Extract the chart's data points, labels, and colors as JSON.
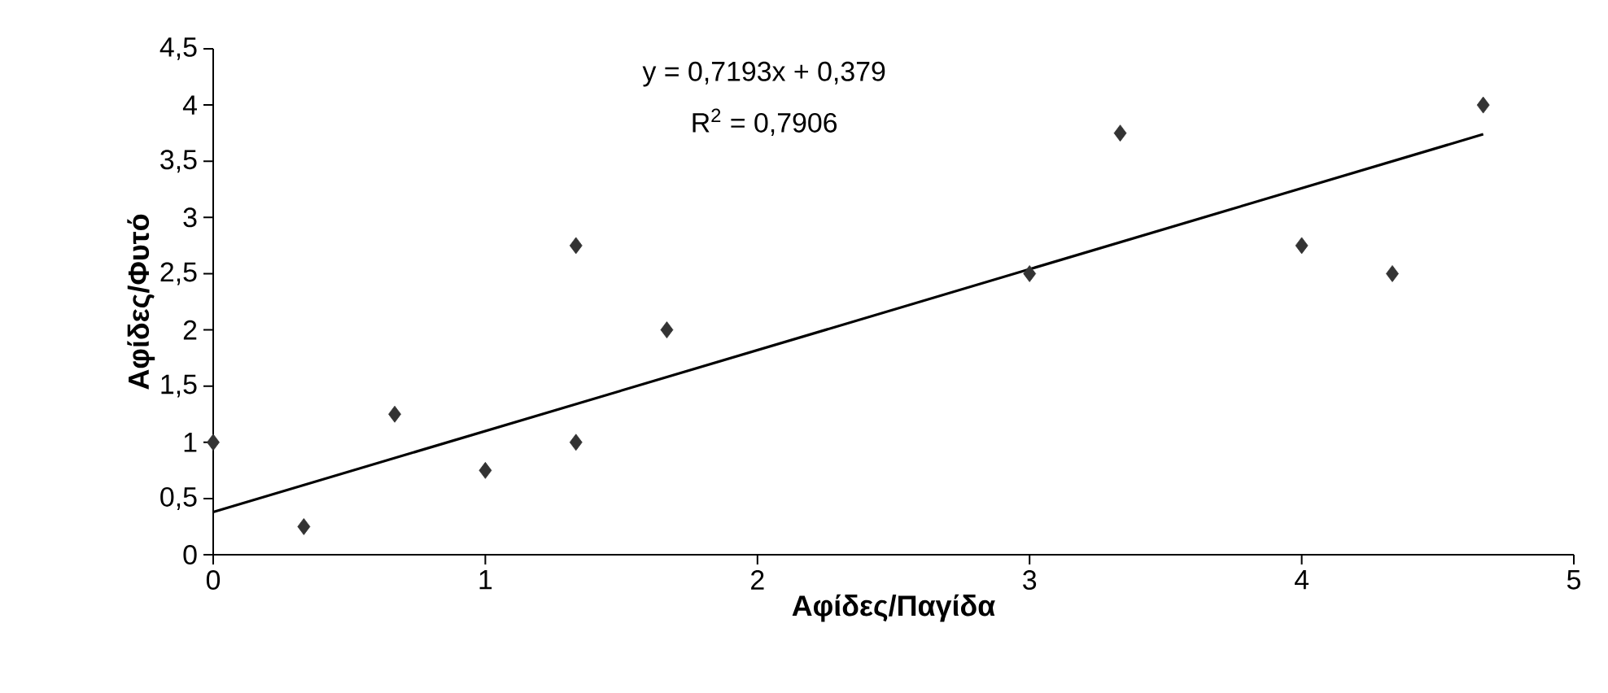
{
  "chart_data": {
    "type": "scatter",
    "xlabel": "Αφίδες/Παγίδα",
    "ylabel": "Αφίδες/Φυτό",
    "annotations": [
      "y = 0,7193x + 0,379",
      "R$^{2}$ = 0,7906"
    ],
    "xlim": [
      0,
      5
    ],
    "ylim": [
      0,
      4.5
    ],
    "xticks": [
      0,
      1,
      2,
      3,
      4,
      5
    ],
    "yticks": [
      0,
      {
        "value": 0.5,
        "label": "0,5"
      },
      1,
      {
        "value": 1.5,
        "label": "1,5"
      },
      2,
      {
        "value": 2.5,
        "label": "2,5"
      },
      3,
      {
        "value": 3.5,
        "label": "3,5"
      },
      4,
      {
        "value": 4.5,
        "label": "4,5"
      }
    ],
    "grid": false,
    "legend": false,
    "series": [
      {
        "color": "#333333",
        "marker": "diamond",
        "x": [
          0,
          0.333,
          0.667,
          1,
          1.333,
          1.333,
          1.667,
          3,
          3.333,
          4,
          4.333,
          4.667
        ],
        "values": [
          1,
          0.25,
          1.25,
          0.75,
          2.75,
          1,
          2,
          2.5,
          3.75,
          2.75,
          2.5,
          4
        ]
      },
      {
        "type": "line",
        "color": "#000000",
        "marker": "none",
        "line_style": "solid",
        "x": [
          0,
          4.667
        ],
        "values": [
          0.38,
          3.74
        ]
      }
    ]
  }
}
